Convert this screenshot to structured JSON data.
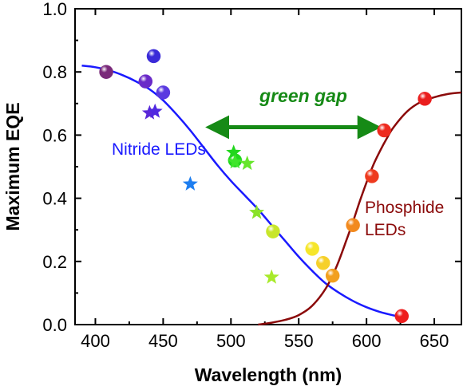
{
  "chart_data": {
    "type": "scatter",
    "title": "",
    "xlabel": "Wavelength (nm)",
    "ylabel": "Maximum EQE",
    "xlim": [
      385,
      670
    ],
    "ylim": [
      0.0,
      1.0
    ],
    "x_ticks": [
      400,
      450,
      500,
      550,
      600,
      650
    ],
    "y_ticks": [
      "0.0",
      "0.2",
      "0.4",
      "0.6",
      "0.8",
      "1.0"
    ],
    "grid": false,
    "curves": [
      {
        "name": "Nitride LEDs",
        "color": "#1a1aff",
        "points": [
          [
            390,
            0.82
          ],
          [
            400,
            0.815
          ],
          [
            410,
            0.805
          ],
          [
            420,
            0.79
          ],
          [
            430,
            0.77
          ],
          [
            440,
            0.745
          ],
          [
            450,
            0.71
          ],
          [
            460,
            0.665
          ],
          [
            470,
            0.615
          ],
          [
            480,
            0.56
          ],
          [
            490,
            0.505
          ],
          [
            500,
            0.455
          ],
          [
            510,
            0.41
          ],
          [
            520,
            0.365
          ],
          [
            530,
            0.315
          ],
          [
            540,
            0.265
          ],
          [
            550,
            0.215
          ],
          [
            560,
            0.17
          ],
          [
            570,
            0.13
          ],
          [
            580,
            0.1
          ],
          [
            590,
            0.075
          ],
          [
            600,
            0.055
          ],
          [
            610,
            0.04
          ],
          [
            620,
            0.029
          ],
          [
            625,
            0.025
          ]
        ]
      },
      {
        "name": "Phosphide LEDs",
        "color": "#8b0a0a",
        "points": [
          [
            520,
            0.0
          ],
          [
            530,
            0.006
          ],
          [
            540,
            0.015
          ],
          [
            550,
            0.03
          ],
          [
            560,
            0.06
          ],
          [
            570,
            0.115
          ],
          [
            578,
            0.185
          ],
          [
            585,
            0.265
          ],
          [
            590,
            0.325
          ],
          [
            595,
            0.39
          ],
          [
            600,
            0.45
          ],
          [
            605,
            0.505
          ],
          [
            610,
            0.55
          ],
          [
            615,
            0.59
          ],
          [
            620,
            0.625
          ],
          [
            630,
            0.675
          ],
          [
            640,
            0.705
          ],
          [
            650,
            0.72
          ],
          [
            660,
            0.73
          ],
          [
            670,
            0.735
          ]
        ]
      }
    ],
    "spheres": [
      {
        "x": 408,
        "y": 0.8,
        "color": "#7a2a7a"
      },
      {
        "x": 443,
        "y": 0.85,
        "color": "#3a2ad8"
      },
      {
        "x": 437,
        "y": 0.77,
        "color": "#6a2ac8"
      },
      {
        "x": 450,
        "y": 0.735,
        "color": "#5a3ae0"
      },
      {
        "x": 503,
        "y": 0.52,
        "color": "#22d61e"
      },
      {
        "x": 531,
        "y": 0.295,
        "color": "#c8e62a"
      },
      {
        "x": 560,
        "y": 0.24,
        "color": "#f6e62a"
      },
      {
        "x": 568,
        "y": 0.195,
        "color": "#f6d02a"
      },
      {
        "x": 575,
        "y": 0.155,
        "color": "#f2a01e"
      },
      {
        "x": 590,
        "y": 0.315,
        "color": "#f28a1e"
      },
      {
        "x": 604,
        "y": 0.47,
        "color": "#ee3a1e"
      },
      {
        "x": 613,
        "y": 0.615,
        "color": "#ee2a1e"
      },
      {
        "x": 626,
        "y": 0.027,
        "color": "#ee1e1e"
      },
      {
        "x": 643,
        "y": 0.715,
        "color": "#ea1e1e"
      }
    ],
    "stars": [
      {
        "x": 440,
        "y": 0.67,
        "color": "#5a28d8"
      },
      {
        "x": 444,
        "y": 0.675,
        "color": "#5028e0"
      },
      {
        "x": 470,
        "y": 0.445,
        "color": "#1e7ef0"
      },
      {
        "x": 502,
        "y": 0.545,
        "color": "#22d61e"
      },
      {
        "x": 503,
        "y": 0.515,
        "color": "#3ee62a"
      },
      {
        "x": 512,
        "y": 0.51,
        "color": "#66e62a"
      },
      {
        "x": 519,
        "y": 0.355,
        "color": "#8ae22a"
      },
      {
        "x": 530,
        "y": 0.15,
        "color": "#a8ea2a"
      }
    ],
    "annotations": {
      "green_gap": {
        "text": "green gap",
        "color": "#168a16",
        "arrow_from_x": 484,
        "arrow_to_x": 608,
        "arrow_y": 0.625
      },
      "nitride": {
        "text": "Nitride LEDs",
        "color": "#1a1aff"
      },
      "phosphide": {
        "lines": [
          "Phosphide",
          "LEDs"
        ],
        "color": "#8b0a0a"
      }
    }
  }
}
